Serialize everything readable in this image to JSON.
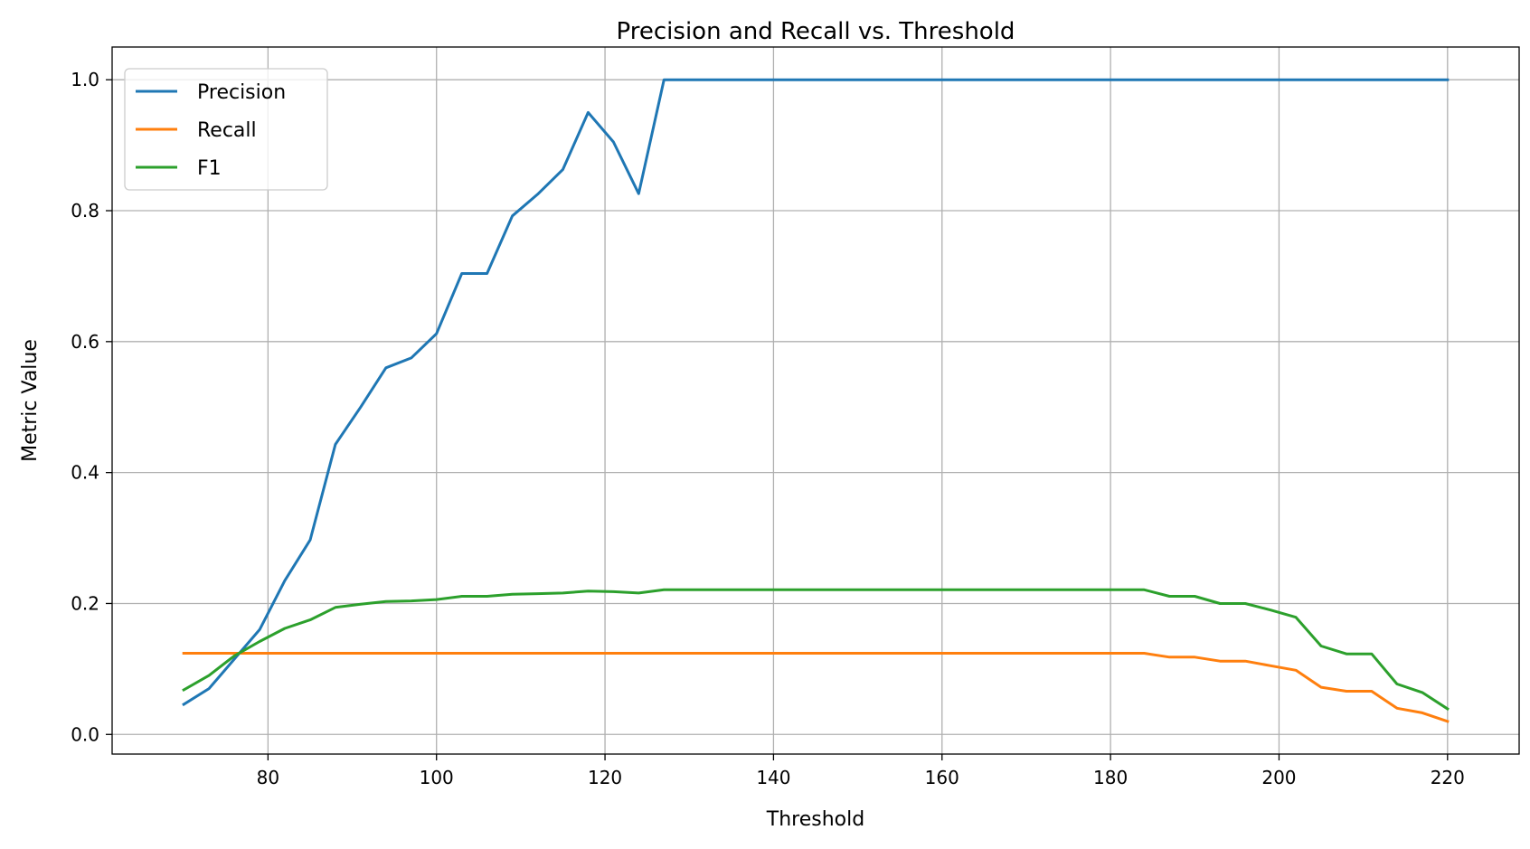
{
  "chart_data": {
    "type": "line",
    "title": "Precision and Recall vs. Threshold",
    "xlabel": "Threshold",
    "ylabel": "Metric Value",
    "xlim": [
      61.5,
      228.5
    ],
    "ylim": [
      -0.03,
      1.05
    ],
    "xticks": [
      80,
      100,
      120,
      140,
      160,
      180,
      200,
      220
    ],
    "yticks": [
      0.0,
      0.2,
      0.4,
      0.6,
      0.8,
      1.0
    ],
    "xtick_labels": [
      "80",
      "100",
      "120",
      "140",
      "160",
      "180",
      "200",
      "220"
    ],
    "ytick_labels": [
      "0.0",
      "0.2",
      "0.4",
      "0.6",
      "0.8",
      "1.0"
    ],
    "grid": true,
    "legend_position": "top-left",
    "x": [
      70,
      73,
      76,
      79,
      82,
      85,
      88,
      91,
      94,
      97,
      100,
      103,
      106,
      109,
      112,
      115,
      118,
      121,
      124,
      127,
      130,
      133,
      136,
      139,
      142,
      145,
      148,
      151,
      154,
      157,
      160,
      163,
      166,
      169,
      172,
      175,
      178,
      181,
      184,
      187,
      190,
      193,
      196,
      199,
      202,
      205,
      208,
      211,
      214,
      217,
      220
    ],
    "series": [
      {
        "name": "Precision",
        "color": "#1f77b4",
        "values": [
          0.046,
          0.07,
          0.115,
          0.16,
          0.235,
          0.297,
          0.443,
          0.5,
          0.56,
          0.575,
          0.612,
          0.704,
          0.704,
          0.792,
          0.825,
          0.863,
          0.95,
          0.905,
          0.826,
          1.0,
          1.0,
          1.0,
          1.0,
          1.0,
          1.0,
          1.0,
          1.0,
          1.0,
          1.0,
          1.0,
          1.0,
          1.0,
          1.0,
          1.0,
          1.0,
          1.0,
          1.0,
          1.0,
          1.0,
          1.0,
          1.0,
          1.0,
          1.0,
          1.0,
          1.0,
          1.0,
          1.0,
          1.0,
          1.0,
          1.0,
          1.0
        ]
      },
      {
        "name": "Recall",
        "color": "#ff7f0e",
        "values": [
          0.124,
          0.124,
          0.124,
          0.124,
          0.124,
          0.124,
          0.124,
          0.124,
          0.124,
          0.124,
          0.124,
          0.124,
          0.124,
          0.124,
          0.124,
          0.124,
          0.124,
          0.124,
          0.124,
          0.124,
          0.124,
          0.124,
          0.124,
          0.124,
          0.124,
          0.124,
          0.124,
          0.124,
          0.124,
          0.124,
          0.124,
          0.124,
          0.124,
          0.124,
          0.124,
          0.124,
          0.124,
          0.124,
          0.124,
          0.118,
          0.118,
          0.112,
          0.112,
          0.105,
          0.098,
          0.072,
          0.066,
          0.066,
          0.04,
          0.033,
          0.02
        ]
      },
      {
        "name": "F1",
        "color": "#2ca02c",
        "values": [
          0.068,
          0.09,
          0.12,
          0.142,
          0.162,
          0.175,
          0.194,
          0.199,
          0.203,
          0.204,
          0.206,
          0.211,
          0.211,
          0.214,
          0.215,
          0.216,
          0.219,
          0.218,
          0.216,
          0.221,
          0.221,
          0.221,
          0.221,
          0.221,
          0.221,
          0.221,
          0.221,
          0.221,
          0.221,
          0.221,
          0.221,
          0.221,
          0.221,
          0.221,
          0.221,
          0.221,
          0.221,
          0.221,
          0.221,
          0.211,
          0.211,
          0.2,
          0.2,
          0.19,
          0.179,
          0.135,
          0.123,
          0.123,
          0.077,
          0.064,
          0.039
        ]
      }
    ]
  }
}
